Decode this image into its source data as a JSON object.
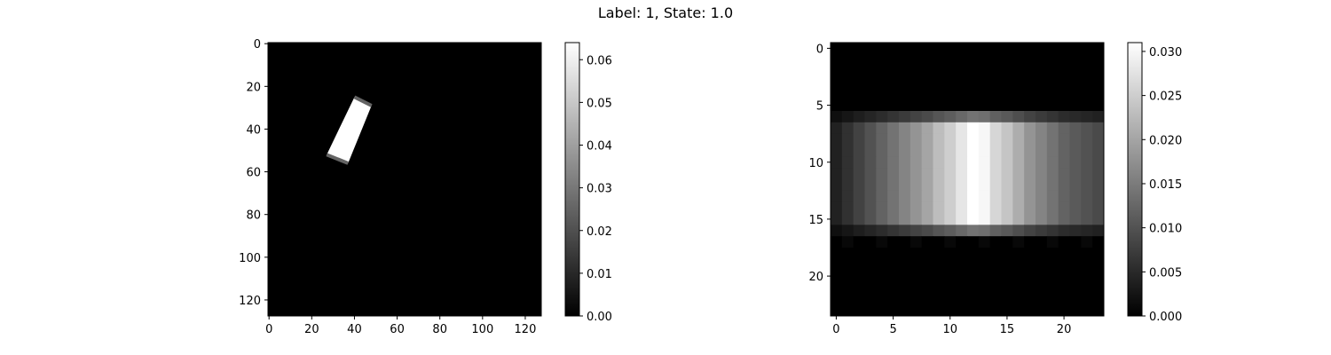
{
  "figure": {
    "title": "Label: 1, State: 1.0"
  },
  "chart_data": [
    {
      "type": "heatmap",
      "colormap": "gray",
      "grid": false,
      "xlim": [
        0,
        127
      ],
      "ylim": [
        127,
        0
      ],
      "xticks": [
        "0",
        "20",
        "40",
        "60",
        "80",
        "100",
        "120"
      ],
      "yticks": [
        "0",
        "20",
        "40",
        "60",
        "80",
        "100",
        "120"
      ],
      "colorbar": {
        "range": [
          0,
          0.064
        ],
        "ticks": [
          "0.00",
          "0.01",
          "0.02",
          "0.03",
          "0.04",
          "0.05",
          "0.06"
        ]
      },
      "bright_region": {
        "shape": "rotated-rectangle",
        "corners": [
          [
            40,
            25
          ],
          [
            48,
            29
          ],
          [
            37,
            56
          ],
          [
            27,
            52
          ]
        ],
        "value": 0.064,
        "edge_value": 0.025
      }
    },
    {
      "type": "heatmap",
      "colormap": "gray",
      "grid": false,
      "xlim": [
        0,
        23
      ],
      "ylim": [
        23,
        0
      ],
      "xticks": [
        "0",
        "5",
        "10",
        "15",
        "20"
      ],
      "yticks": [
        "0",
        "5",
        "10",
        "15",
        "20"
      ],
      "colorbar": {
        "range": [
          0,
          0.031
        ],
        "ticks": [
          "0.000",
          "0.005",
          "0.010",
          "0.015",
          "0.020",
          "0.025",
          "0.030"
        ]
      },
      "band_rows": [
        6,
        16
      ],
      "column_profile": [
        0.004,
        0.006,
        0.008,
        0.01,
        0.012,
        0.014,
        0.016,
        0.018,
        0.02,
        0.023,
        0.025,
        0.028,
        0.031,
        0.03,
        0.026,
        0.024,
        0.021,
        0.018,
        0.016,
        0.014,
        0.012,
        0.011,
        0.01,
        0.009
      ]
    }
  ]
}
